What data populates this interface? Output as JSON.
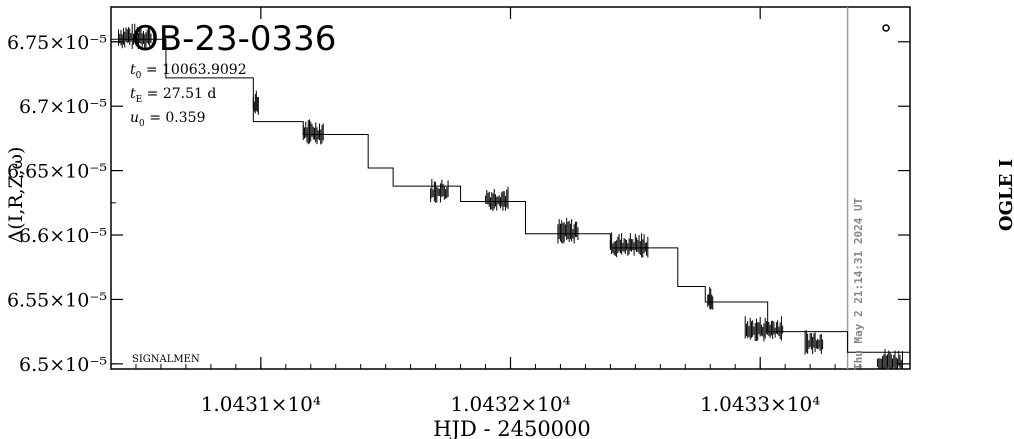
{
  "chart_data": {
    "type": "line",
    "title": "OB-23-0336",
    "xlabel": "HJD - 2450000",
    "ylabel": "Δ(I,R,Z,ω)",
    "right_label": "OGLE I",
    "corner_label": "SIGNALMEN",
    "timestamp": "Thu May 2 21:14:31 2024 UT",
    "legend_marker": "circle",
    "params": [
      {
        "sym": "t",
        "sub": "0",
        "text": " = 10063.9092"
      },
      {
        "sym": "t",
        "sub": "E",
        "text": " = 27.51 d"
      },
      {
        "sym": "u",
        "sub": "0",
        "text": " = 0.359"
      }
    ],
    "x_ticks": [
      {
        "value": 10431,
        "label": "1.0431×10⁴"
      },
      {
        "value": 10432,
        "label": "1.0432×10⁴"
      },
      {
        "value": 10433,
        "label": "1.0433×10⁴"
      }
    ],
    "y_ticks": [
      {
        "value": 6.75e-05,
        "label": "6.75×10⁻⁵"
      },
      {
        "value": 6.7e-05,
        "label": "6.7×10⁻⁵"
      },
      {
        "value": 6.65e-05,
        "label": "6.65×10⁻⁵"
      },
      {
        "value": 6.6e-05,
        "label": "6.6×10⁻⁵"
      },
      {
        "value": 6.55e-05,
        "label": "6.55×10⁻⁵"
      },
      {
        "value": 6.5e-05,
        "label": "6.5×10⁻⁵"
      }
    ],
    "xlim": [
      10430.4,
      10433.6
    ],
    "ylim": [
      6.496e-05,
      6.777e-05
    ],
    "now_line_x": 10433.35,
    "grid": false,
    "steps": [
      {
        "x": 10430.35,
        "y": 6.752e-05
      },
      {
        "x": 10430.62,
        "y": 6.722e-05
      },
      {
        "x": 10430.97,
        "y": 6.688e-05
      },
      {
        "x": 10431.17,
        "y": 6.678e-05
      },
      {
        "x": 10431.43,
        "y": 6.652e-05
      },
      {
        "x": 10431.53,
        "y": 6.638e-05
      },
      {
        "x": 10431.8,
        "y": 6.626e-05
      },
      {
        "x": 10432.06,
        "y": 6.601e-05
      },
      {
        "x": 10432.4,
        "y": 6.59e-05
      },
      {
        "x": 10432.67,
        "y": 6.56e-05
      },
      {
        "x": 10432.78,
        "y": 6.548e-05
      },
      {
        "x": 10433.03,
        "y": 6.525e-05
      },
      {
        "x": 10433.35,
        "y": 6.509e-05
      },
      {
        "x": 10433.6,
        "y": 6.5e-05
      }
    ],
    "data_clusters": [
      {
        "x_start": 10430.43,
        "x_end": 10430.56,
        "y": 6.752e-05
      },
      {
        "x_start": 10430.97,
        "x_end": 10430.99,
        "y": 6.7e-05
      },
      {
        "x_start": 10431.17,
        "x_end": 10431.25,
        "y": 6.678e-05
      },
      {
        "x_start": 10431.68,
        "x_end": 10431.75,
        "y": 6.632e-05
      },
      {
        "x_start": 10431.9,
        "x_end": 10431.99,
        "y": 6.626e-05
      },
      {
        "x_start": 10432.19,
        "x_end": 10432.27,
        "y": 6.601e-05
      },
      {
        "x_start": 10432.4,
        "x_end": 10432.55,
        "y": 6.59e-05
      },
      {
        "x_start": 10432.79,
        "x_end": 10432.81,
        "y": 6.548e-05
      },
      {
        "x_start": 10432.94,
        "x_end": 10433.09,
        "y": 6.525e-05
      },
      {
        "x_start": 10433.18,
        "x_end": 10433.25,
        "y": 6.515e-05
      },
      {
        "x_start": 10433.47,
        "x_end": 10433.57,
        "y": 6.5e-05
      }
    ]
  }
}
